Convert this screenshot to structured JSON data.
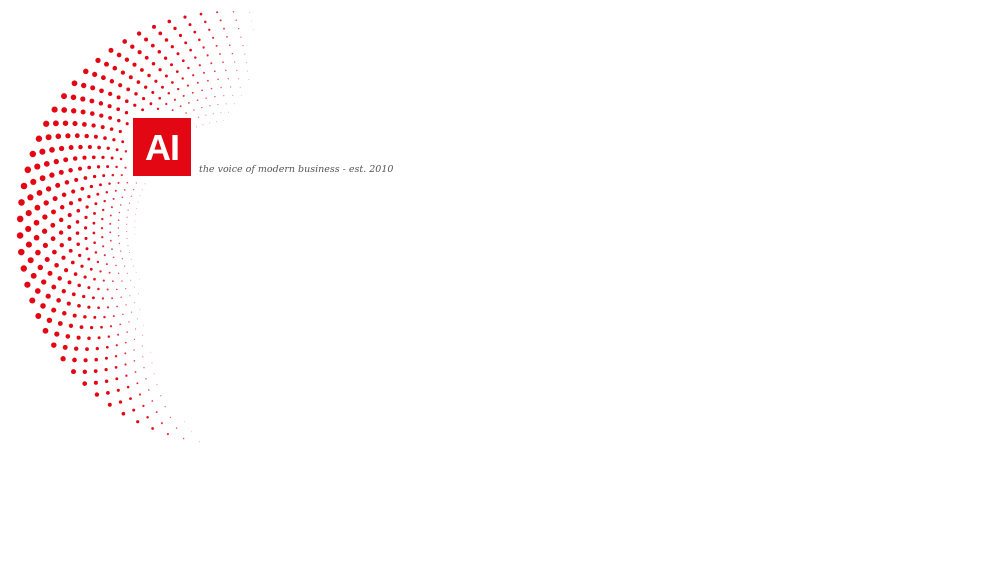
{
  "brand": {
    "logo_text": "AI",
    "tagline": "the voice of modern business - est. 2010",
    "accent_color": "#e30613"
  }
}
